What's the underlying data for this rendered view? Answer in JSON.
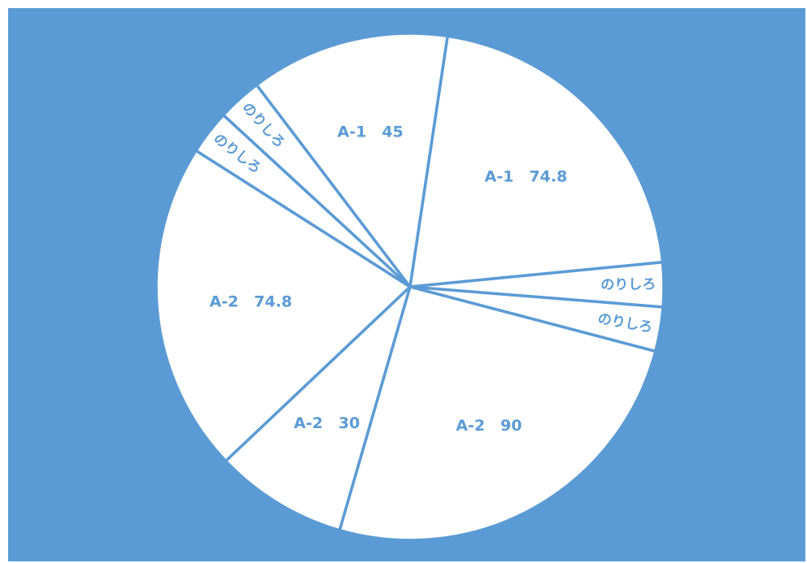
{
  "colors": {
    "background": "#5b9bd5",
    "slice_fill": "#ffffff",
    "slice_border": "#5b9bd5",
    "label_text": "#5b9bd5"
  },
  "chart_data": {
    "type": "pie",
    "title": "",
    "legend": "none",
    "start": "top",
    "direction": "clockwise",
    "slices": [
      {
        "label": "A-1　74.8",
        "value": 74.8
      },
      {
        "label": "のりしろ",
        "value": 10
      },
      {
        "label": "のりしろ",
        "value": 10
      },
      {
        "label": "A-2　90",
        "value": 90
      },
      {
        "label": "A-2　30",
        "value": 30
      },
      {
        "label": "A-2　74.8",
        "value": 74.8
      },
      {
        "label": "のりしろ",
        "value": 10
      },
      {
        "label": "のりしろ",
        "value": 10
      },
      {
        "label": "A-1　45",
        "value": 45
      }
    ]
  }
}
